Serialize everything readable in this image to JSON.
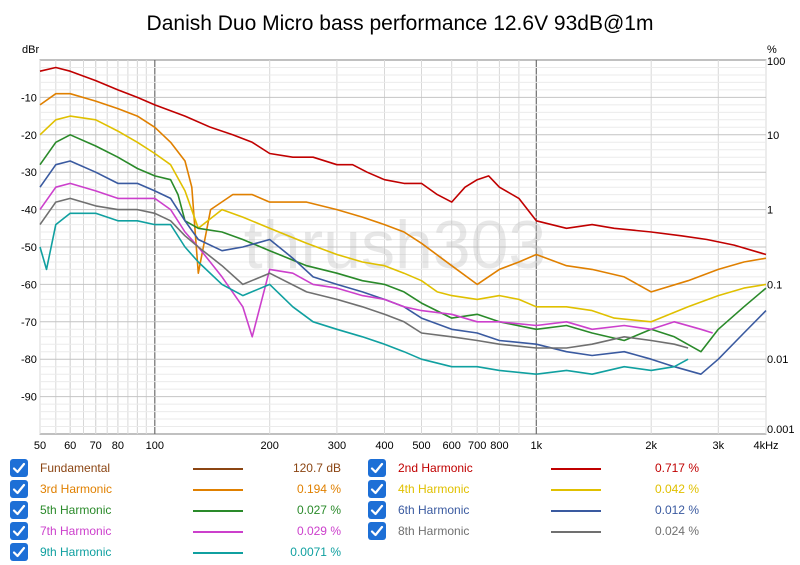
{
  "chart_data": {
    "type": "line",
    "title": "Danish Duo Micro bass performance 12.6V 93dB@1m",
    "watermark": "thrush303",
    "xlabel": "Hz",
    "x_scale": "log",
    "xlim": [
      50,
      4000
    ],
    "x_ticks": [
      {
        "v": 50,
        "label": "50"
      },
      {
        "v": 60,
        "label": "60"
      },
      {
        "v": 70,
        "label": "70"
      },
      {
        "v": 80,
        "label": "80"
      },
      {
        "v": 100,
        "label": "100"
      },
      {
        "v": 200,
        "label": "200"
      },
      {
        "v": 300,
        "label": "300"
      },
      {
        "v": 400,
        "label": "400"
      },
      {
        "v": 500,
        "label": "500"
      },
      {
        "v": 600,
        "label": "600"
      },
      {
        "v": 700,
        "label": "700"
      },
      {
        "v": 800,
        "label": "800"
      },
      {
        "v": 1000,
        "label": "1k"
      },
      {
        "v": 2000,
        "label": "2k"
      },
      {
        "v": 3000,
        "label": "3k"
      },
      {
        "v": 4000,
        "label": "4kHz"
      }
    ],
    "ylabel_left": "dBr",
    "ylim_left": [
      -100,
      0
    ],
    "y_ticks_left": [
      -10,
      -20,
      -30,
      -40,
      -50,
      -60,
      -70,
      -80,
      -90
    ],
    "ylabel_right": "%",
    "ylim_right": [
      0.001,
      100
    ],
    "y_ticks_right": [
      {
        "v": 100,
        "label": "100"
      },
      {
        "v": 10,
        "label": "10"
      },
      {
        "v": 1,
        "label": "1"
      },
      {
        "v": 0.1,
        "label": "0.1"
      },
      {
        "v": 0.01,
        "label": "0.01"
      },
      {
        "v": 0.001,
        "label": "0.001"
      }
    ],
    "grid": true,
    "series": [
      {
        "name": "Fundamental",
        "value": "120.7 dB",
        "color": "#8b4513",
        "checked": true,
        "points": []
      },
      {
        "name": "2nd Harmonic",
        "value": "0.717 %",
        "color": "#c00000",
        "checked": true,
        "points": [
          [
            50,
            -3
          ],
          [
            55,
            -2
          ],
          [
            60,
            -3
          ],
          [
            70,
            -5.5
          ],
          [
            80,
            -8
          ],
          [
            90,
            -10
          ],
          [
            100,
            -12
          ],
          [
            120,
            -15
          ],
          [
            140,
            -18
          ],
          [
            160,
            -20
          ],
          [
            180,
            -22
          ],
          [
            200,
            -25
          ],
          [
            230,
            -26
          ],
          [
            260,
            -26
          ],
          [
            300,
            -28
          ],
          [
            330,
            -28
          ],
          [
            360,
            -30
          ],
          [
            400,
            -32
          ],
          [
            450,
            -33
          ],
          [
            500,
            -33
          ],
          [
            550,
            -36
          ],
          [
            600,
            -38
          ],
          [
            650,
            -34
          ],
          [
            700,
            -32
          ],
          [
            750,
            -31
          ],
          [
            800,
            -34
          ],
          [
            900,
            -37
          ],
          [
            1000,
            -43
          ],
          [
            1200,
            -45
          ],
          [
            1400,
            -44
          ],
          [
            1600,
            -45
          ],
          [
            2000,
            -46
          ],
          [
            2400,
            -47
          ],
          [
            2800,
            -48
          ],
          [
            3300,
            -49.5
          ],
          [
            4000,
            -52
          ]
        ]
      },
      {
        "name": "3rd Harmonic",
        "value": "0.194 %",
        "color": "#e08000",
        "checked": true,
        "points": [
          [
            50,
            -12
          ],
          [
            55,
            -9
          ],
          [
            60,
            -9
          ],
          [
            70,
            -11
          ],
          [
            80,
            -13
          ],
          [
            90,
            -15
          ],
          [
            100,
            -18
          ],
          [
            110,
            -22
          ],
          [
            120,
            -27
          ],
          [
            125,
            -34
          ],
          [
            130,
            -57
          ],
          [
            140,
            -40
          ],
          [
            160,
            -36
          ],
          [
            180,
            -36
          ],
          [
            200,
            -38
          ],
          [
            250,
            -38
          ],
          [
            300,
            -40
          ],
          [
            350,
            -42
          ],
          [
            400,
            -44
          ],
          [
            450,
            -46
          ],
          [
            500,
            -49
          ],
          [
            600,
            -55
          ],
          [
            700,
            -60
          ],
          [
            800,
            -56
          ],
          [
            900,
            -54
          ],
          [
            1000,
            -52
          ],
          [
            1200,
            -55
          ],
          [
            1400,
            -56
          ],
          [
            1700,
            -58
          ],
          [
            2000,
            -62
          ],
          [
            2500,
            -59
          ],
          [
            3000,
            -56
          ],
          [
            3500,
            -54
          ],
          [
            4000,
            -53
          ]
        ]
      },
      {
        "name": "4th Harmonic",
        "value": "0.042 %",
        "color": "#e0c000",
        "checked": true,
        "points": [
          [
            50,
            -20
          ],
          [
            55,
            -16
          ],
          [
            60,
            -15
          ],
          [
            70,
            -16
          ],
          [
            80,
            -19
          ],
          [
            90,
            -22
          ],
          [
            100,
            -25
          ],
          [
            110,
            -28
          ],
          [
            120,
            -35
          ],
          [
            130,
            -45
          ],
          [
            150,
            -40
          ],
          [
            170,
            -42
          ],
          [
            200,
            -45
          ],
          [
            250,
            -49
          ],
          [
            300,
            -52
          ],
          [
            350,
            -54
          ],
          [
            400,
            -55
          ],
          [
            450,
            -57
          ],
          [
            500,
            -59
          ],
          [
            550,
            -62
          ],
          [
            600,
            -63
          ],
          [
            700,
            -64
          ],
          [
            800,
            -63
          ],
          [
            900,
            -64
          ],
          [
            1000,
            -66
          ],
          [
            1200,
            -66
          ],
          [
            1400,
            -67
          ],
          [
            1600,
            -69
          ],
          [
            2000,
            -70
          ],
          [
            2500,
            -66
          ],
          [
            3000,
            -63
          ],
          [
            3500,
            -61
          ],
          [
            4000,
            -60
          ]
        ]
      },
      {
        "name": "5th Harmonic",
        "value": "0.027 %",
        "color": "#2a8a2a",
        "checked": true,
        "points": [
          [
            50,
            -28
          ],
          [
            55,
            -22
          ],
          [
            60,
            -20
          ],
          [
            70,
            -23
          ],
          [
            80,
            -26
          ],
          [
            90,
            -29
          ],
          [
            100,
            -31
          ],
          [
            110,
            -32
          ],
          [
            115,
            -36
          ],
          [
            120,
            -43
          ],
          [
            130,
            -45
          ],
          [
            150,
            -46
          ],
          [
            170,
            -48
          ],
          [
            200,
            -51
          ],
          [
            250,
            -55
          ],
          [
            300,
            -57
          ],
          [
            350,
            -59
          ],
          [
            400,
            -60
          ],
          [
            450,
            -62
          ],
          [
            500,
            -65
          ],
          [
            600,
            -69
          ],
          [
            700,
            -68
          ],
          [
            800,
            -70
          ],
          [
            1000,
            -72
          ],
          [
            1200,
            -71
          ],
          [
            1400,
            -73
          ],
          [
            1700,
            -75
          ],
          [
            2000,
            -72
          ],
          [
            2300,
            -74
          ],
          [
            2700,
            -78
          ],
          [
            3000,
            -72
          ],
          [
            3500,
            -66
          ],
          [
            4000,
            -61
          ]
        ]
      },
      {
        "name": "6th Harmonic",
        "value": "0.012 %",
        "color": "#3a5aa0",
        "checked": true,
        "points": [
          [
            50,
            -34
          ],
          [
            55,
            -28
          ],
          [
            60,
            -27
          ],
          [
            70,
            -30
          ],
          [
            80,
            -33
          ],
          [
            90,
            -33
          ],
          [
            100,
            -35
          ],
          [
            110,
            -37
          ],
          [
            120,
            -43
          ],
          [
            130,
            -48
          ],
          [
            150,
            -51
          ],
          [
            170,
            -50
          ],
          [
            200,
            -48
          ],
          [
            230,
            -53
          ],
          [
            260,
            -58
          ],
          [
            300,
            -60
          ],
          [
            350,
            -62
          ],
          [
            400,
            -64
          ],
          [
            450,
            -66
          ],
          [
            500,
            -69
          ],
          [
            600,
            -72
          ],
          [
            700,
            -73
          ],
          [
            800,
            -75
          ],
          [
            1000,
            -76
          ],
          [
            1200,
            -78
          ],
          [
            1400,
            -79
          ],
          [
            1700,
            -78
          ],
          [
            2000,
            -80
          ],
          [
            2300,
            -82
          ],
          [
            2700,
            -84
          ],
          [
            3000,
            -80
          ],
          [
            3500,
            -73
          ],
          [
            4000,
            -67
          ]
        ]
      },
      {
        "name": "7th Harmonic",
        "value": "0.029 %",
        "color": "#cc40cc",
        "checked": true,
        "points": [
          [
            50,
            -40
          ],
          [
            55,
            -34
          ],
          [
            60,
            -33
          ],
          [
            70,
            -35
          ],
          [
            80,
            -37
          ],
          [
            90,
            -37
          ],
          [
            100,
            -37
          ],
          [
            110,
            -40
          ],
          [
            120,
            -46
          ],
          [
            130,
            -50
          ],
          [
            150,
            -58
          ],
          [
            170,
            -66
          ],
          [
            180,
            -74
          ],
          [
            200,
            -56
          ],
          [
            230,
            -57
          ],
          [
            260,
            -60
          ],
          [
            300,
            -61
          ],
          [
            350,
            -63
          ],
          [
            400,
            -64
          ],
          [
            450,
            -66
          ],
          [
            500,
            -67
          ],
          [
            600,
            -68
          ],
          [
            700,
            -70
          ],
          [
            800,
            -70
          ],
          [
            1000,
            -71
          ],
          [
            1200,
            -70
          ],
          [
            1400,
            -72
          ],
          [
            1700,
            -71
          ],
          [
            2000,
            -72
          ],
          [
            2300,
            -70
          ],
          [
            2700,
            -72
          ],
          [
            2900,
            -73
          ]
        ]
      },
      {
        "name": "8th Harmonic",
        "value": "0.024 %",
        "color": "#707070",
        "checked": true,
        "points": [
          [
            50,
            -44
          ],
          [
            55,
            -38
          ],
          [
            60,
            -37
          ],
          [
            70,
            -39
          ],
          [
            80,
            -40
          ],
          [
            90,
            -40
          ],
          [
            100,
            -41
          ],
          [
            110,
            -43
          ],
          [
            120,
            -47
          ],
          [
            130,
            -50
          ],
          [
            150,
            -55
          ],
          [
            170,
            -60
          ],
          [
            200,
            -57
          ],
          [
            250,
            -62
          ],
          [
            300,
            -64
          ],
          [
            350,
            -66
          ],
          [
            400,
            -68
          ],
          [
            450,
            -70
          ],
          [
            500,
            -73
          ],
          [
            600,
            -74
          ],
          [
            700,
            -75
          ],
          [
            800,
            -76
          ],
          [
            1000,
            -77
          ],
          [
            1200,
            -77
          ],
          [
            1400,
            -76
          ],
          [
            1700,
            -74
          ],
          [
            2000,
            -75
          ],
          [
            2300,
            -76
          ],
          [
            2500,
            -77
          ]
        ]
      },
      {
        "name": "9th Harmonic",
        "value": "0.0071 %",
        "color": "#10a0a0",
        "checked": true,
        "points": [
          [
            50,
            -50
          ],
          [
            52,
            -56
          ],
          [
            55,
            -44
          ],
          [
            60,
            -41
          ],
          [
            70,
            -41
          ],
          [
            80,
            -43
          ],
          [
            90,
            -43
          ],
          [
            100,
            -44
          ],
          [
            110,
            -44
          ],
          [
            120,
            -50
          ],
          [
            130,
            -54
          ],
          [
            150,
            -60
          ],
          [
            170,
            -63
          ],
          [
            200,
            -60
          ],
          [
            230,
            -66
          ],
          [
            260,
            -70
          ],
          [
            300,
            -72
          ],
          [
            350,
            -74
          ],
          [
            400,
            -76
          ],
          [
            450,
            -78
          ],
          [
            500,
            -80
          ],
          [
            600,
            -82
          ],
          [
            700,
            -82
          ],
          [
            800,
            -83
          ],
          [
            1000,
            -84
          ],
          [
            1200,
            -83
          ],
          [
            1400,
            -84
          ],
          [
            1700,
            -82
          ],
          [
            2000,
            -83
          ],
          [
            2300,
            -82
          ],
          [
            2500,
            -80
          ]
        ]
      }
    ]
  }
}
